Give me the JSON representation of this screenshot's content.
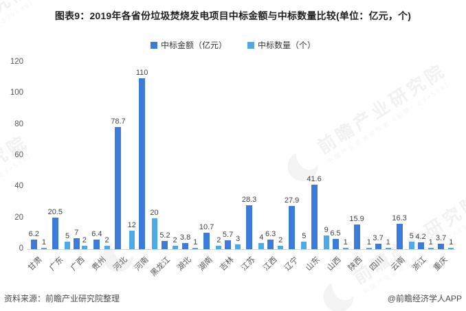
{
  "title": "图表9：2019年各省份垃圾焚烧发电项目中标金额与中标数量比较(单位：亿元，个)",
  "legend": [
    {
      "label": "中标金额（亿元）",
      "color": "#3c7bd9"
    },
    {
      "label": "中标数量（个）",
      "color": "#4fa8e8"
    }
  ],
  "chart_data": {
    "type": "bar",
    "title": "图表9：2019年各省份垃圾焚烧发电项目中标金额与中标数量比较(单位：亿元，个)",
    "categories": [
      "甘肃",
      "广东",
      "广西",
      "贵州",
      "河北",
      "河南",
      "黑龙江",
      "湖北",
      "湖南",
      "吉林",
      "江苏",
      "江西",
      "辽宁",
      "山东",
      "山西",
      "陕西",
      "四川",
      "云南",
      "浙江",
      "重庆"
    ],
    "series": [
      {
        "name": "中标金额（亿元）",
        "color": "#3c7bd9",
        "values": [
          6.2,
          20.5,
          7,
          6.4,
          78.7,
          110,
          5.2,
          3.8,
          10.7,
          5.7,
          28.3,
          6.3,
          27.9,
          41.6,
          6.5,
          15.9,
          3.7,
          16.3,
          4.2,
          3.7
        ],
        "labels": [
          "6.2",
          "20.5",
          "7",
          "6.4",
          "78.7",
          "110",
          "5.2",
          "3.8",
          "10.7",
          "5.7",
          "28.3",
          "6.3",
          "27.9",
          "41.6",
          "6.5",
          "15.9",
          "3.7",
          "16.3",
          "4.2",
          "3.7"
        ]
      },
      {
        "name": "中标数量（个）",
        "color": "#4fa8e8",
        "values": [
          1,
          5,
          2,
          2,
          12,
          20,
          2,
          1,
          2,
          3,
          4,
          2,
          5,
          9,
          1,
          1,
          1,
          5,
          1,
          1
        ],
        "labels": [
          "1",
          "5",
          "2",
          "2",
          "12",
          "20",
          "2",
          "1",
          "2",
          "3",
          "4",
          "2",
          "5",
          "9",
          "1",
          "1",
          "1",
          "5",
          "1",
          "1"
        ]
      }
    ],
    "ylim": [
      0,
      120
    ],
    "yticks": [
      0,
      20,
      40,
      60,
      80,
      100,
      120
    ],
    "grid": false,
    "legend_position": "top",
    "xlabel_rotation": 45,
    "value_labels": true
  },
  "footer": {
    "source": "资料来源：前瞻产业研究院整理",
    "credit": "@前瞻经济学人APP"
  },
  "watermark": {
    "text": "前瞻产业研究院",
    "subtext": "中国产业咨询领导者（股票：839599）"
  }
}
